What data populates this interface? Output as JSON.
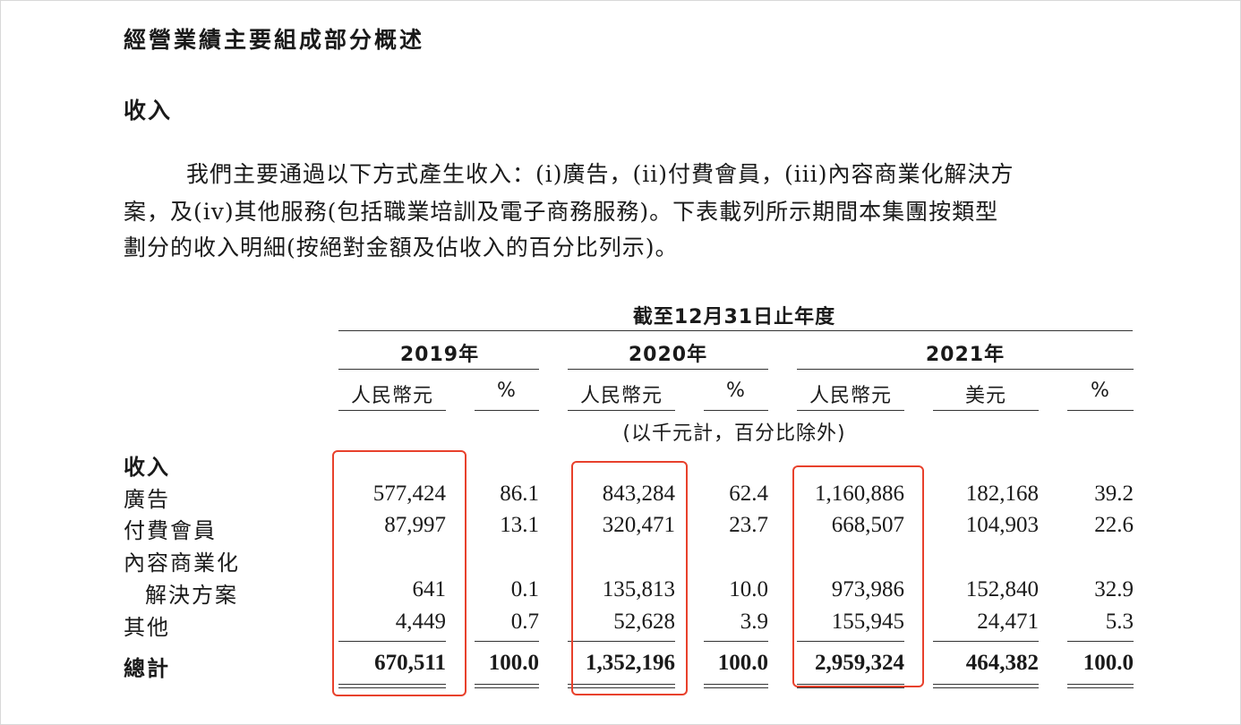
{
  "section_title": "經營業績主要組成部分概述",
  "subsection_title": "收入",
  "paragraph": {
    "line1": "我們主要通過以下方式產生收入：(i)廣告，(ii)付費會員，(iii)內容商業化解決方",
    "line2": "案，及(iv)其他服務(包括職業培訓及電子商務服務)。下表載列所示期間本集團按類型",
    "line3": "劃分的收入明細(按絕對金額及佔收入的百分比列示)。"
  },
  "table": {
    "period_header": "截至12月31日止年度",
    "years": [
      "2019年",
      "2020年",
      "2021年"
    ],
    "columns": [
      "人民幣元",
      "%",
      "人民幣元",
      "%",
      "人民幣元",
      "美元",
      "%"
    ],
    "unit_note": "(以千元計，百分比除外)",
    "section_label": "收入",
    "rows": [
      {
        "label": "廣告",
        "values": [
          "577,424",
          "86.1",
          "843,284",
          "62.4",
          "1,160,886",
          "182,168",
          "39.2"
        ]
      },
      {
        "label": "付費會員",
        "values": [
          "87,997",
          "13.1",
          "320,471",
          "23.7",
          "668,507",
          "104,903",
          "22.6"
        ]
      },
      {
        "label": "內容商業化",
        "label_cont": "解決方案",
        "values": [
          "641",
          "0.1",
          "135,813",
          "10.0",
          "973,986",
          "152,840",
          "32.9"
        ]
      },
      {
        "label": "其他",
        "values": [
          "4,449",
          "0.7",
          "52,628",
          "3.9",
          "155,945",
          "24,471",
          "5.3"
        ]
      }
    ],
    "total": {
      "label": "總計",
      "values": [
        "670,511",
        "100.0",
        "1,352,196",
        "100.0",
        "2,959,324",
        "464,382",
        "100.0"
      ]
    }
  },
  "colors": {
    "highlight_box": "#e8412c",
    "text": "#1a1a1a",
    "rule": "#333333"
  }
}
